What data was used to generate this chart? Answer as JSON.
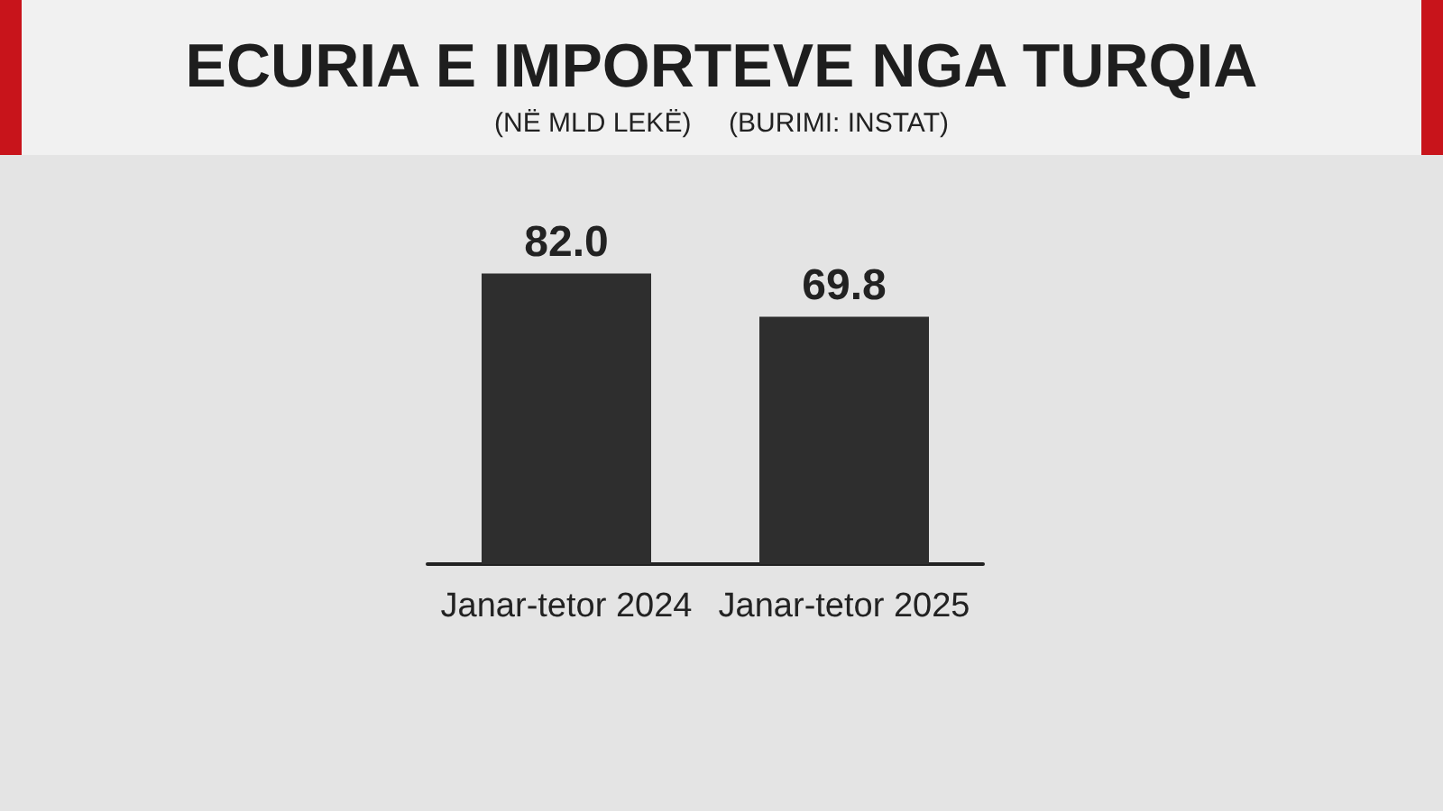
{
  "chart_data": {
    "type": "bar",
    "title": "ECURIA E IMPORTEVE NGA TURQIA",
    "subtitle": "(NË MLD LEKË)",
    "annotations": [
      "(BURIMI: INSTAT)"
    ],
    "categories": [
      "Janar-tetor 2024",
      "Janar-tetor 2025"
    ],
    "values": [
      82.0,
      69.8
    ],
    "value_labels": [
      "82.0",
      "69.8"
    ],
    "color": "#2e2e2e"
  }
}
